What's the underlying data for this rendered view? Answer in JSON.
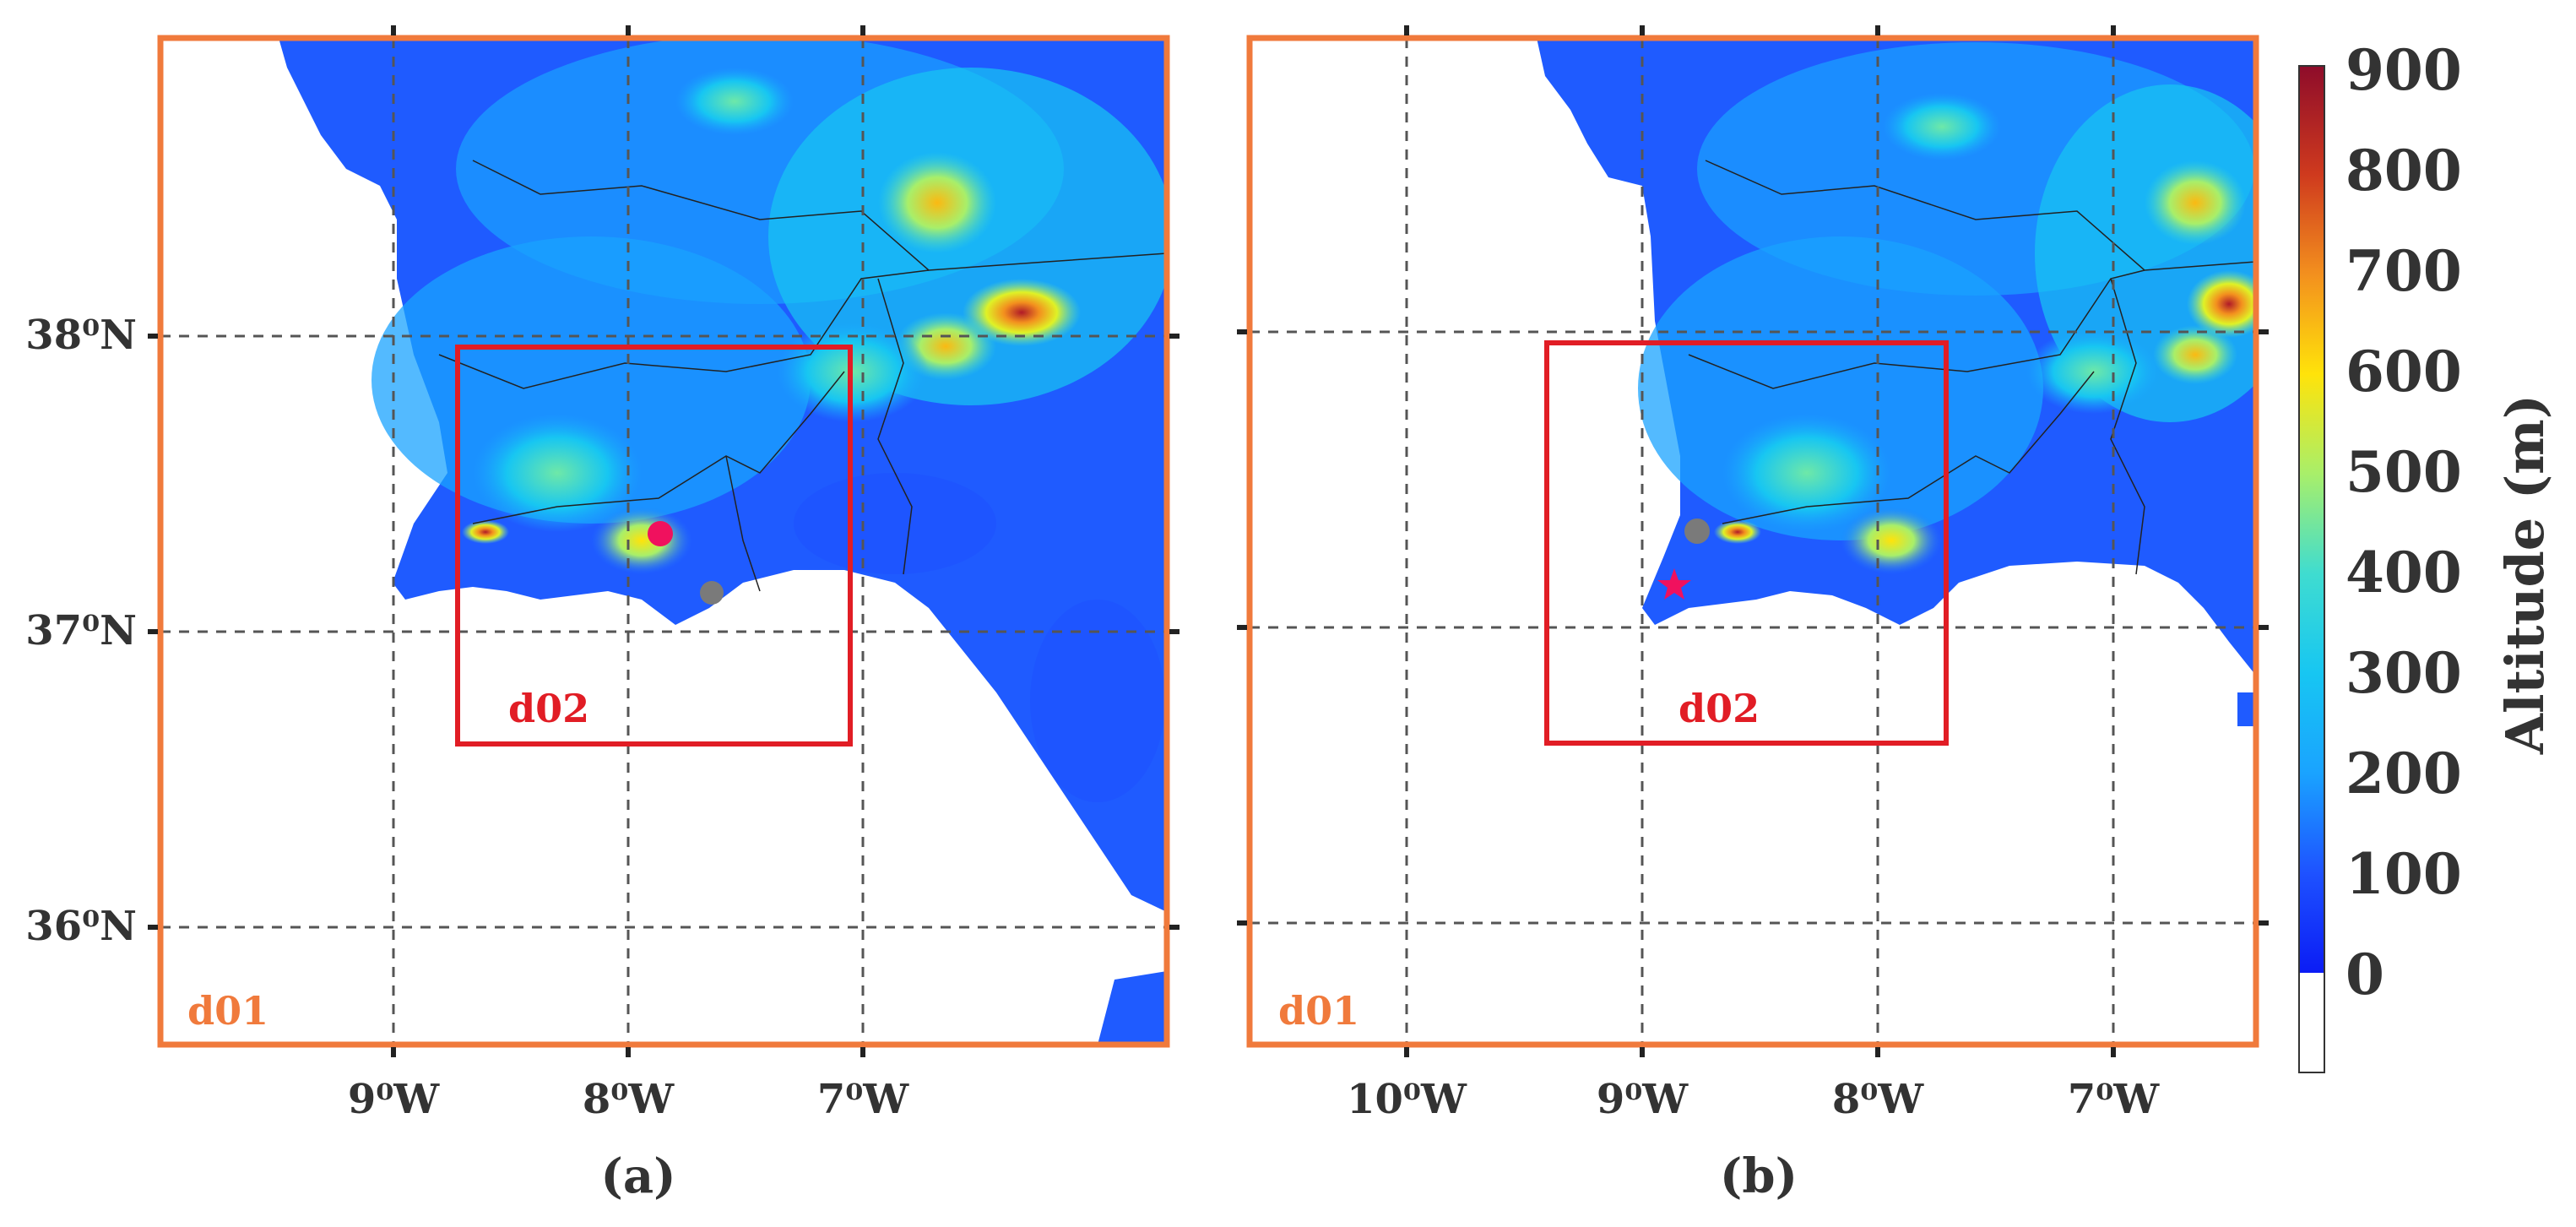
{
  "figure": {
    "colorbar": {
      "label": "Altitude (m)",
      "ticks": [
        "900",
        "800",
        "700",
        "600",
        "500",
        "400",
        "300",
        "200",
        "100",
        "0"
      ],
      "colors": [
        "#0b1cf5",
        "#1e52ff",
        "#1f7bff",
        "#1aa3ff",
        "#17c6f2",
        "#3fdcd0",
        "#6ee8a8",
        "#a8ef6a",
        "#dff226",
        "#ffe30a",
        "#fbb912",
        "#f3901e",
        "#e4661f",
        "#cf3a1e",
        "#b01a28",
        "#8e0c2a"
      ]
    },
    "panels": [
      {
        "caption": "(a)",
        "lat_labels": [
          "38⁰N",
          "37⁰N",
          "36⁰N"
        ],
        "lon_labels": [
          "9⁰W",
          "8⁰W",
          "7⁰W"
        ],
        "outer_domain_label": "d01",
        "inner_domain_label": "d02",
        "markers": [
          {
            "type": "circle",
            "color": "#f0115e"
          },
          {
            "type": "circle",
            "color": "#7a7a7a"
          }
        ]
      },
      {
        "caption": "(b)",
        "lat_labels": [
          "38⁰N",
          "37⁰N",
          "36⁰N"
        ],
        "lon_labels": [
          "10⁰W",
          "9⁰W",
          "8⁰W",
          "7⁰W"
        ],
        "outer_domain_label": "d01",
        "inner_domain_label": "d02",
        "markers": [
          {
            "type": "circle",
            "color": "#7a7a7a"
          },
          {
            "type": "star",
            "color": "#f0115e"
          }
        ]
      }
    ],
    "colors": {
      "outer_domain": "#f07a3c",
      "inner_domain": "#e11d25",
      "grid": "#555555",
      "border": "#222222"
    }
  }
}
